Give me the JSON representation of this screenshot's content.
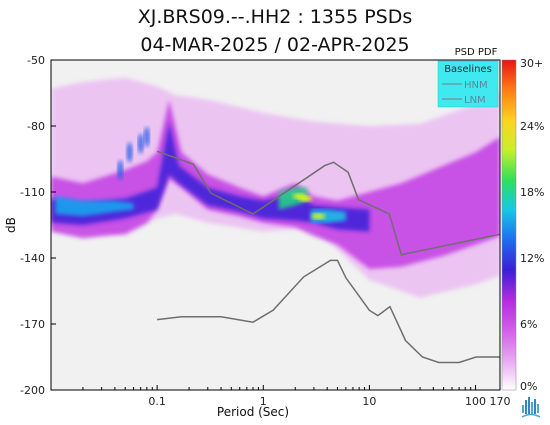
{
  "title_line1": "XJ.BRS09.--.HH2 : 1355 PSDs",
  "title_line2": "04-MAR-2025 / 02-APR-2025",
  "colorbar_label": "PSD PDF",
  "colorbar_ticks": [
    "30+",
    "24%",
    "18%",
    "12%",
    "6%",
    "0%"
  ],
  "colorbar_stops": [
    "#ffffff",
    "#e6a8f0",
    "#d25ee8",
    "#b32be0",
    "#3a1fd8",
    "#1e6cf0",
    "#14c8e8",
    "#2fe05a",
    "#c8f028",
    "#ffd21e",
    "#ff7d14",
    "#e81414"
  ],
  "chart_data": {
    "type": "heatmap",
    "xlabel": "Period (Sec)",
    "ylabel": "dB",
    "x_scale": "log",
    "xlim": [
      0.01,
      170
    ],
    "ylim": [
      -200,
      -50
    ],
    "x_ticks": [
      "0.1",
      "1",
      "10",
      "100",
      "170"
    ],
    "x_tick_values": [
      0.1,
      1,
      10,
      100,
      170
    ],
    "y_ticks": [
      "-50",
      "-80",
      "-110",
      "-140",
      "-170",
      "-200"
    ],
    "y_tick_values": [
      -50,
      -80,
      -110,
      -140,
      -170,
      -200
    ],
    "legend": {
      "title": "Baselines",
      "entries": [
        {
          "label": "HNM",
          "color": "#7a7a7a"
        },
        {
          "label": "LNM",
          "color": "#7a7a7a"
        }
      ]
    },
    "series": [
      {
        "name": "HNM",
        "x": [
          0.1,
          0.22,
          0.32,
          0.8,
          3.8,
          4.6,
          6.3,
          7.9,
          15.4,
          20,
          354.8
        ],
        "y": [
          -91.5,
          -97.4,
          -110.5,
          -120,
          -98,
          -96.5,
          -101,
          -113.5,
          -120,
          -138.5,
          -126
        ]
      },
      {
        "name": "LNM",
        "x": [
          0.1,
          0.17,
          0.4,
          0.8,
          1.24,
          2.4,
          4.3,
          5,
          6,
          10,
          12,
          15.6,
          21.9,
          31.6,
          45,
          70,
          101,
          154,
          328
        ],
        "y": [
          -168,
          -166.7,
          -166.7,
          -169.2,
          -163.7,
          -148.6,
          -141.1,
          -141.1,
          -149,
          -163.8,
          -166.2,
          -162.1,
          -177.5,
          -185,
          -187.5,
          -187.5,
          -185,
          -185,
          -185
        ]
      }
    ]
  },
  "logo": "logo-icon"
}
